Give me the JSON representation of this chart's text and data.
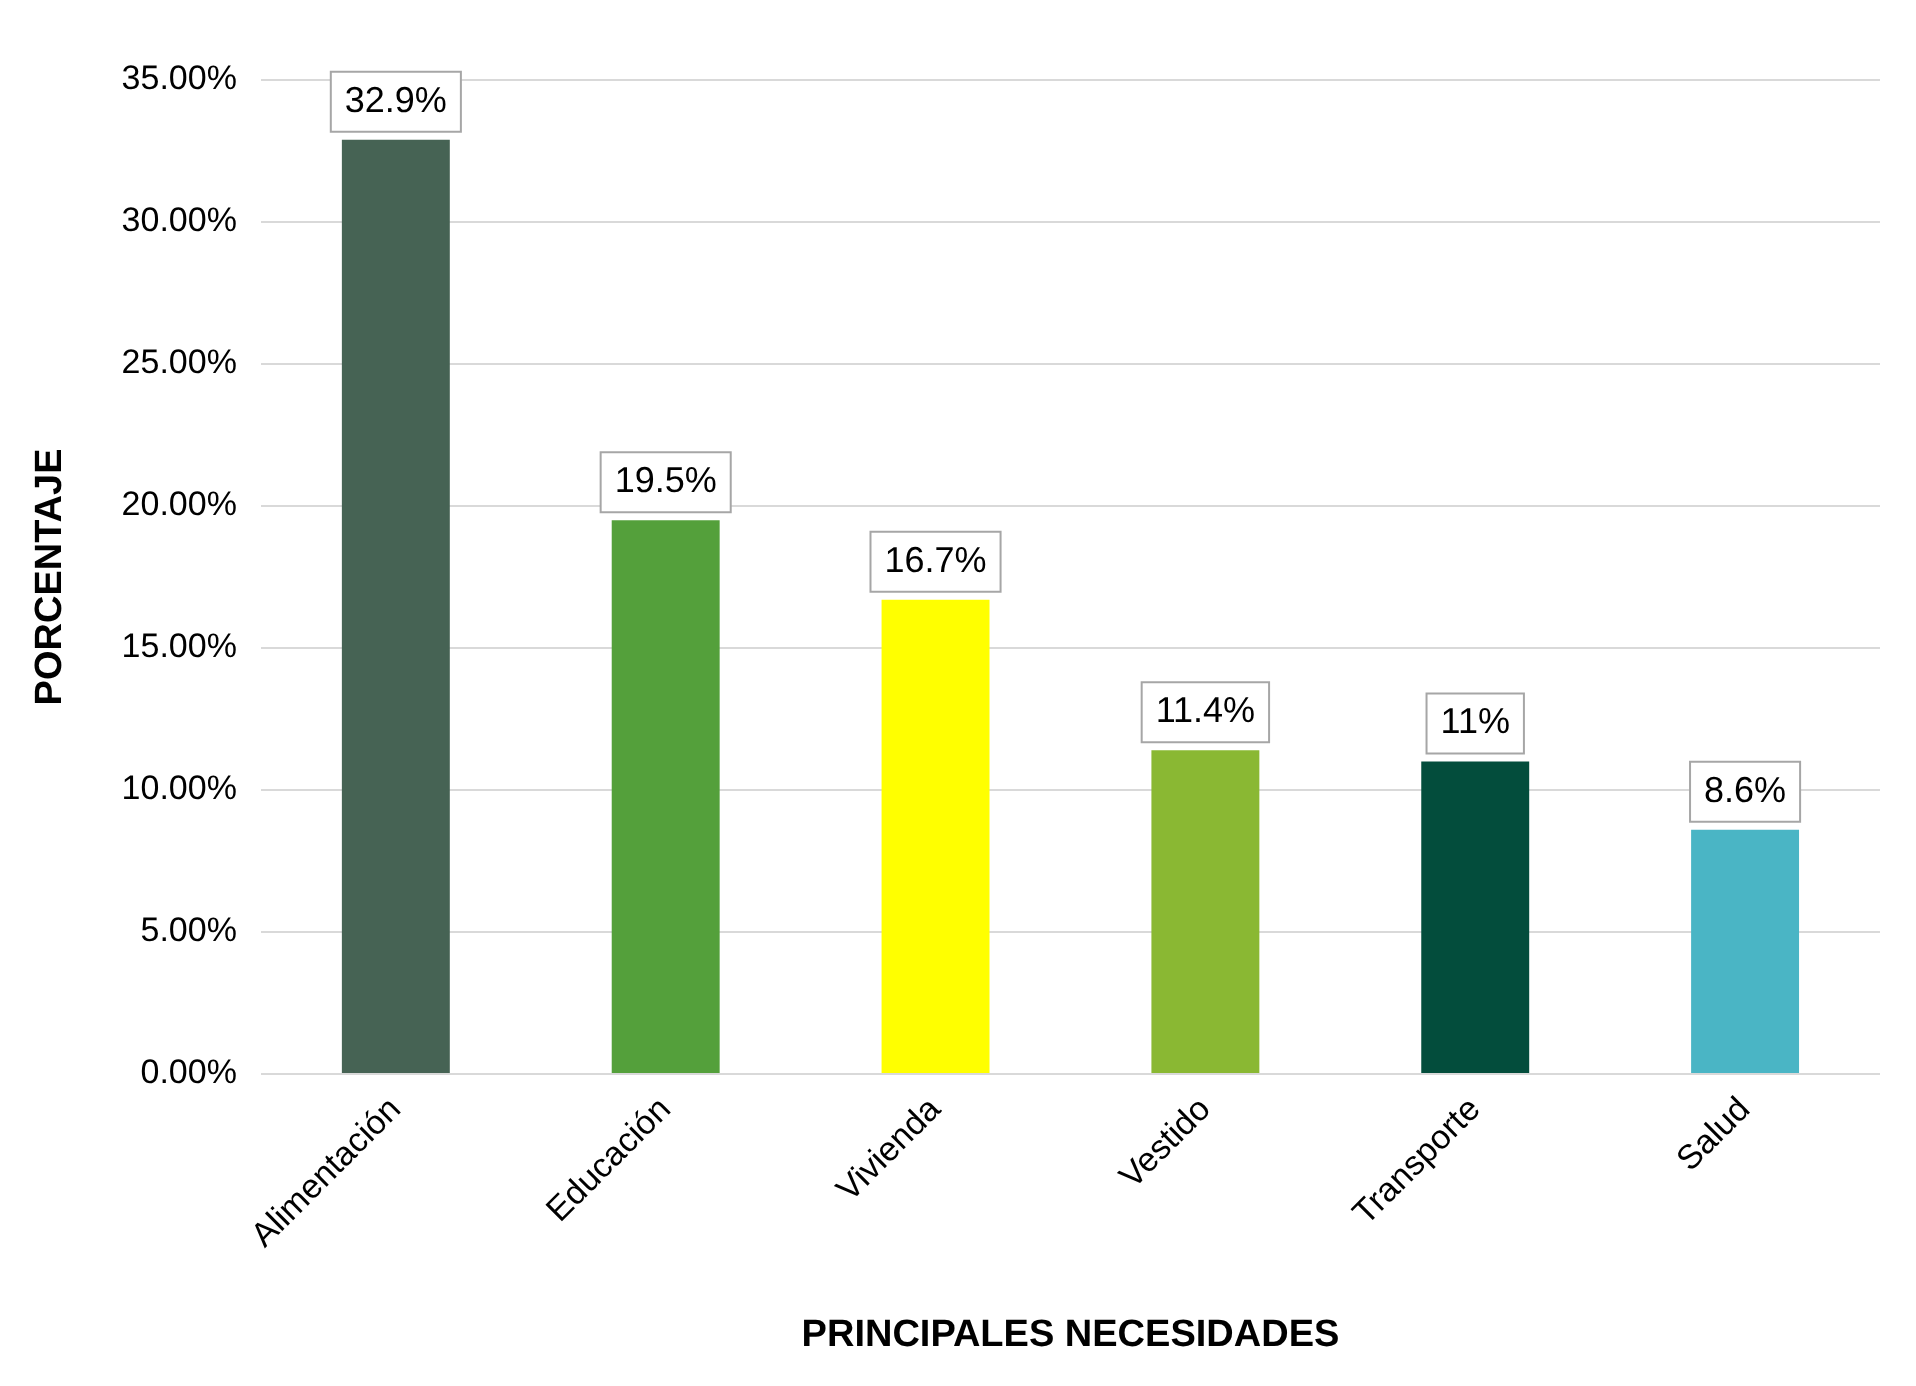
{
  "chart_data": {
    "type": "bar",
    "xlabel": "PRINCIPALES NECESIDADES",
    "ylabel": "PORCENTAJE",
    "categories": [
      "Alimentación",
      "Educación",
      "Vivienda",
      "Vestido",
      "Transporte",
      "Salud"
    ],
    "values": [
      32.9,
      19.5,
      16.7,
      11.4,
      11,
      8.6
    ],
    "colors": [
      "#466354",
      "#54a03b",
      "#ffff00",
      "#8ab833",
      "#034d3c",
      "#4ab5c5"
    ],
    "value_labels": [
      "32.9%",
      "19.5%",
      "16.7%",
      "11.4%",
      "11%",
      "8.6%"
    ],
    "ylim": [
      0,
      35
    ],
    "yticks": [
      {
        "value": 0,
        "label": "0.00%"
      },
      {
        "value": 5,
        "label": "5.00%"
      },
      {
        "value": 10,
        "label": "10.00%"
      },
      {
        "value": 15,
        "label": "15.00%"
      },
      {
        "value": 20,
        "label": "20.00%"
      },
      {
        "value": 25,
        "label": "25.00%"
      },
      {
        "value": 30,
        "label": "30.00%"
      },
      {
        "value": 35,
        "label": "35.00%"
      }
    ],
    "grid": "y",
    "legend": false
  }
}
